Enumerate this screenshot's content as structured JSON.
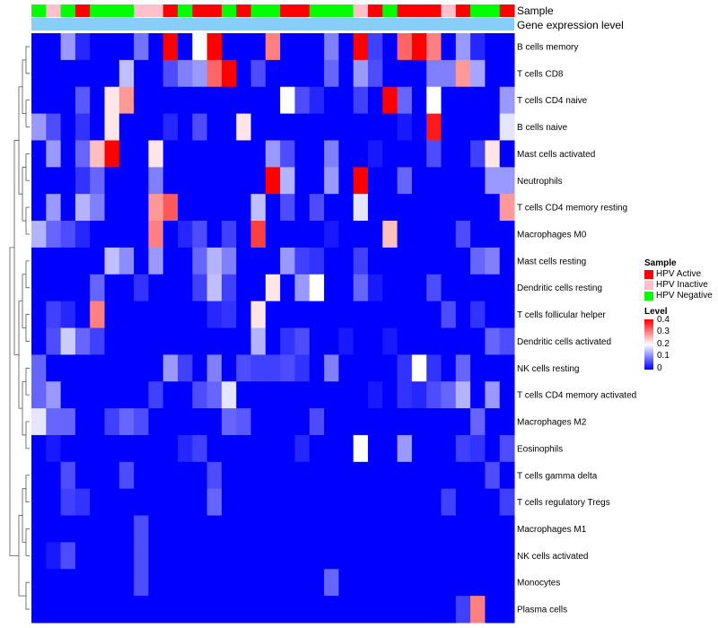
{
  "chart_data": {
    "type": "heatmap",
    "title": "",
    "rows": [
      "B cells memory",
      "T cells CD8",
      "T cells CD4 naive",
      "B cells naive",
      "Mast cells activated",
      "Neutrophils",
      "T cells CD4 memory resting",
      "Macrophages M0",
      "Mast cells resting",
      "Dendritic cells resting",
      "T cells follicular helper",
      "Dendritic cells activated",
      "NK cells resting",
      "T cells CD4 memory activated",
      "Macrophages M2",
      "Eosinophils",
      "T cells gamma delta",
      "T cells regulatory  Tregs",
      "Macrophages M1",
      "NK cells activated",
      "Monocytes",
      "Plasma cells"
    ],
    "sample_groups": [
      "Negative",
      "Inactive",
      "Negative",
      "Active",
      "Negative",
      "Negative",
      "Negative",
      "Inactive",
      "Inactive",
      "Active",
      "Negative",
      "Active",
      "Active",
      "Negative",
      "Active",
      "Negative",
      "Negative",
      "Active",
      "Active",
      "Negative",
      "Negative",
      "Negative",
      "Inactive",
      "Active",
      "Negative",
      "Active",
      "Active",
      "Active",
      "Inactive",
      "Active",
      "Negative",
      "Negative",
      "Active"
    ],
    "values": [
      [
        0.0,
        0.0,
        0.12,
        0.03,
        0.0,
        0.0,
        0.0,
        0.09,
        0.0,
        0.4,
        0.0,
        0.2,
        0.4,
        0.0,
        0.0,
        0.0,
        0.3,
        0.0,
        0.0,
        0.0,
        0.1,
        0.0,
        0.4,
        0.05,
        0.0,
        0.32,
        0.4,
        0.3,
        0.0,
        0.12,
        0.03,
        0.0,
        0.0
      ],
      [
        0.0,
        0.0,
        0.0,
        0.0,
        0.0,
        0.0,
        0.15,
        0.0,
        0.0,
        0.06,
        0.1,
        0.12,
        0.32,
        0.4,
        0.0,
        0.06,
        0.0,
        0.0,
        0.0,
        0.0,
        0.08,
        0.0,
        0.12,
        0.06,
        0.0,
        0.0,
        0.0,
        0.1,
        0.1,
        0.28,
        0.13,
        0.0,
        0.0
      ],
      [
        0.0,
        0.0,
        0.0,
        0.07,
        0.0,
        0.22,
        0.28,
        0.0,
        0.0,
        0.0,
        0.0,
        0.0,
        0.0,
        0.0,
        0.0,
        0.0,
        0.0,
        0.2,
        0.06,
        0.03,
        0.0,
        0.0,
        0.05,
        0.0,
        0.4,
        0.08,
        0.0,
        0.2,
        0.0,
        0.0,
        0.0,
        0.0,
        0.12
      ],
      [
        0.12,
        0.06,
        0.0,
        0.04,
        0.0,
        0.22,
        0.0,
        0.0,
        0.0,
        0.03,
        0.0,
        0.06,
        0.0,
        0.0,
        0.22,
        0.0,
        0.0,
        0.0,
        0.0,
        0.0,
        0.0,
        0.0,
        0.0,
        0.0,
        0.0,
        0.02,
        0.0,
        0.38,
        0.0,
        0.0,
        0.0,
        0.0,
        0.18
      ],
      [
        0.0,
        0.12,
        0.0,
        0.08,
        0.25,
        0.4,
        0.0,
        0.0,
        0.22,
        0.0,
        0.0,
        0.0,
        0.0,
        0.0,
        0.0,
        0.0,
        0.12,
        0.06,
        0.0,
        0.0,
        0.1,
        0.0,
        0.0,
        0.02,
        0.0,
        0.0,
        0.0,
        0.06,
        0.0,
        0.0,
        0.05,
        0.22,
        0.0
      ],
      [
        0.0,
        0.0,
        0.0,
        0.04,
        0.08,
        0.0,
        0.0,
        0.0,
        0.1,
        0.0,
        0.0,
        0.0,
        0.0,
        0.0,
        0.0,
        0.0,
        0.4,
        0.14,
        0.0,
        0.0,
        0.12,
        0.0,
        0.4,
        0.0,
        0.0,
        0.08,
        0.0,
        0.0,
        0.0,
        0.0,
        0.0,
        0.12,
        0.12
      ],
      [
        0.0,
        0.12,
        0.0,
        0.14,
        0.1,
        0.0,
        0.0,
        0.0,
        0.28,
        0.33,
        0.0,
        0.0,
        0.0,
        0.0,
        0.0,
        0.15,
        0.0,
        0.06,
        0.0,
        0.06,
        0.0,
        0.0,
        0.18,
        0.0,
        0.0,
        0.0,
        0.0,
        0.0,
        0.0,
        0.0,
        0.0,
        0.0,
        0.28
      ],
      [
        0.14,
        0.08,
        0.06,
        0.03,
        0.0,
        0.0,
        0.0,
        0.0,
        0.3,
        0.0,
        0.03,
        0.06,
        0.0,
        0.05,
        0.0,
        0.35,
        0.0,
        0.0,
        0.0,
        0.0,
        0.02,
        0.0,
        0.0,
        0.0,
        0.25,
        0.0,
        0.0,
        0.0,
        0.0,
        0.06,
        0.0,
        0.0,
        0.0
      ],
      [
        0.0,
        0.0,
        0.0,
        0.0,
        0.0,
        0.15,
        0.11,
        0.0,
        0.12,
        0.0,
        0.0,
        0.08,
        0.14,
        0.1,
        0.0,
        0.0,
        0.0,
        0.12,
        0.05,
        0.04,
        0.0,
        0.0,
        0.05,
        0.0,
        0.0,
        0.0,
        0.0,
        0.0,
        0.0,
        0.0,
        0.08,
        0.1,
        0.0
      ],
      [
        0.0,
        0.0,
        0.0,
        0.0,
        0.08,
        0.0,
        0.0,
        0.04,
        0.0,
        0.0,
        0.0,
        0.05,
        0.15,
        0.05,
        0.0,
        0.0,
        0.22,
        0.0,
        0.12,
        0.2,
        0.0,
        0.0,
        0.08,
        0.02,
        0.0,
        0.0,
        0.0,
        0.06,
        0.0,
        0.0,
        0.0,
        0.0,
        0.0
      ],
      [
        0.0,
        0.05,
        0.03,
        0.0,
        0.3,
        0.0,
        0.0,
        0.0,
        0.0,
        0.0,
        0.0,
        0.0,
        0.03,
        0.04,
        0.0,
        0.22,
        0.0,
        0.0,
        0.0,
        0.0,
        0.0,
        0.0,
        0.0,
        0.0,
        0.0,
        0.0,
        0.0,
        0.0,
        0.06,
        0.0,
        0.04,
        0.0,
        0.0
      ],
      [
        0.0,
        0.06,
        0.16,
        0.08,
        0.05,
        0.0,
        0.0,
        0.0,
        0.0,
        0.0,
        0.0,
        0.0,
        0.0,
        0.0,
        0.0,
        0.14,
        0.0,
        0.04,
        0.06,
        0.0,
        0.0,
        0.02,
        0.0,
        0.0,
        0.02,
        0.0,
        0.0,
        0.0,
        0.0,
        0.0,
        0.0,
        0.08,
        0.06
      ],
      [
        0.08,
        0.0,
        0.0,
        0.0,
        0.0,
        0.0,
        0.0,
        0.0,
        0.0,
        0.12,
        0.05,
        0.0,
        0.1,
        0.0,
        0.06,
        0.05,
        0.05,
        0.06,
        0.04,
        0.0,
        0.1,
        0.0,
        0.0,
        0.0,
        0.0,
        0.04,
        0.2,
        0.04,
        0.0,
        0.08,
        0.0,
        0.0,
        0.0
      ],
      [
        0.08,
        0.12,
        0.0,
        0.0,
        0.0,
        0.0,
        0.0,
        0.0,
        0.05,
        0.0,
        0.0,
        0.06,
        0.08,
        0.18,
        0.0,
        0.0,
        0.0,
        0.0,
        0.0,
        0.0,
        0.0,
        0.0,
        0.0,
        0.02,
        0.0,
        0.04,
        0.03,
        0.06,
        0.08,
        0.14,
        0.0,
        0.12,
        0.0
      ],
      [
        0.18,
        0.08,
        0.08,
        0.0,
        0.0,
        0.05,
        0.08,
        0.06,
        0.0,
        0.0,
        0.0,
        0.0,
        0.0,
        0.08,
        0.07,
        0.0,
        0.0,
        0.0,
        0.0,
        0.06,
        0.0,
        0.0,
        0.0,
        0.0,
        0.0,
        0.0,
        0.0,
        0.0,
        0.0,
        0.0,
        0.08,
        0.0,
        0.0
      ],
      [
        0.0,
        0.02,
        0.0,
        0.0,
        0.0,
        0.0,
        0.0,
        0.0,
        0.0,
        0.0,
        0.03,
        0.05,
        0.0,
        0.0,
        0.0,
        0.0,
        0.0,
        0.0,
        0.03,
        0.0,
        0.0,
        0.0,
        0.2,
        0.0,
        0.0,
        0.12,
        0.0,
        0.0,
        0.0,
        0.05,
        0.04,
        0.0,
        0.06
      ],
      [
        0.0,
        0.0,
        0.06,
        0.0,
        0.0,
        0.0,
        0.06,
        0.0,
        0.0,
        0.0,
        0.0,
        0.0,
        0.06,
        0.0,
        0.0,
        0.0,
        0.0,
        0.0,
        0.0,
        0.0,
        0.0,
        0.0,
        0.0,
        0.0,
        0.0,
        0.0,
        0.0,
        0.0,
        0.0,
        0.0,
        0.0,
        0.06,
        0.0
      ],
      [
        0.0,
        0.0,
        0.05,
        0.04,
        0.0,
        0.0,
        0.0,
        0.0,
        0.0,
        0.0,
        0.0,
        0.0,
        0.08,
        0.0,
        0.0,
        0.0,
        0.0,
        0.0,
        0.0,
        0.0,
        0.0,
        0.0,
        0.0,
        0.0,
        0.0,
        0.0,
        0.0,
        0.0,
        0.05,
        0.0,
        0.0,
        0.0,
        0.05
      ],
      [
        0.0,
        0.0,
        0.0,
        0.0,
        0.0,
        0.0,
        0.0,
        0.06,
        0.0,
        0.0,
        0.0,
        0.0,
        0.0,
        0.0,
        0.0,
        0.0,
        0.0,
        0.0,
        0.0,
        0.0,
        0.0,
        0.0,
        0.0,
        0.0,
        0.0,
        0.0,
        0.0,
        0.0,
        0.0,
        0.0,
        0.0,
        0.0,
        0.0
      ],
      [
        0.0,
        0.02,
        0.06,
        0.0,
        0.0,
        0.0,
        0.0,
        0.06,
        0.0,
        0.0,
        0.0,
        0.0,
        0.0,
        0.0,
        0.0,
        0.0,
        0.0,
        0.0,
        0.0,
        0.0,
        0.0,
        0.0,
        0.0,
        0.0,
        0.0,
        0.0,
        0.0,
        0.0,
        0.0,
        0.0,
        0.0,
        0.0,
        0.0
      ],
      [
        0.0,
        0.0,
        0.0,
        0.0,
        0.0,
        0.0,
        0.0,
        0.06,
        0.0,
        0.0,
        0.0,
        0.0,
        0.0,
        0.0,
        0.0,
        0.0,
        0.0,
        0.0,
        0.0,
        0.0,
        0.08,
        0.0,
        0.0,
        0.0,
        0.0,
        0.0,
        0.0,
        0.0,
        0.0,
        0.0,
        0.0,
        0.0,
        0.0
      ],
      [
        0.0,
        0.0,
        0.0,
        0.0,
        0.0,
        0.0,
        0.0,
        0.0,
        0.0,
        0.0,
        0.0,
        0.0,
        0.0,
        0.0,
        0.0,
        0.0,
        0.0,
        0.0,
        0.0,
        0.0,
        0.0,
        0.0,
        0.0,
        0.0,
        0.0,
        0.0,
        0.0,
        0.0,
        0.0,
        0.05,
        0.3,
        0.0,
        0.0
      ]
    ],
    "color_scale": {
      "min": 0,
      "mid": 0.2,
      "max": 0.4,
      "low_color": "#0000ff",
      "mid_color": "#ffffff",
      "high_color": "#ff0000"
    }
  },
  "annotations": {
    "sample_label": "Sample",
    "gene_label": "Gene expression level",
    "gene_bar_color": "#87cefa"
  },
  "legend": {
    "sample_title": "Sample",
    "items": [
      {
        "label": "HPV Active",
        "color": "#ff0000"
      },
      {
        "label": "HPV Inactive",
        "color": "#ffc0cb"
      },
      {
        "label": "HPV Negative",
        "color": "#00ff00"
      }
    ],
    "level_title": "Level",
    "level_ticks": [
      "0.4",
      "0.3",
      "0.2",
      "0.1",
      "0"
    ]
  },
  "group_colors": {
    "Active": "#ff0000",
    "Inactive": "#ffc0cb",
    "Negative": "#00ff00"
  }
}
